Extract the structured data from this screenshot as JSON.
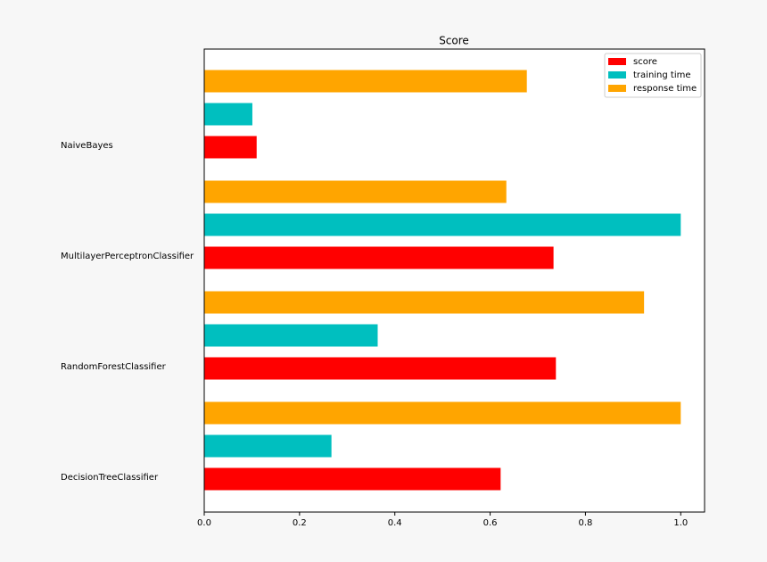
{
  "chart_data": {
    "type": "bar",
    "orientation": "horizontal",
    "title": "Score",
    "categories": [
      "DecisionTreeClassifier",
      "RandomForestClassifier",
      "MultilayerPerceptronClassifier",
      "NaiveBayes"
    ],
    "series": [
      {
        "name": "score",
        "color": "#ff0000",
        "values": [
          0.622,
          0.738,
          0.733,
          0.11
        ]
      },
      {
        "name": "training time",
        "color": "#00bfbf",
        "values": [
          0.267,
          0.364,
          1.0,
          0.101
        ]
      },
      {
        "name": "response time",
        "color": "#ffa500",
        "values": [
          1.0,
          0.923,
          0.634,
          0.677
        ]
      }
    ],
    "xlim": [
      0,
      1.05
    ],
    "xticks": [
      {
        "value": 0,
        "label": "0.0"
      },
      0.2,
      0.4,
      0.6,
      0.8,
      {
        "value": 1,
        "label": "1.0"
      }
    ],
    "grid": false,
    "legend": "upper right"
  }
}
